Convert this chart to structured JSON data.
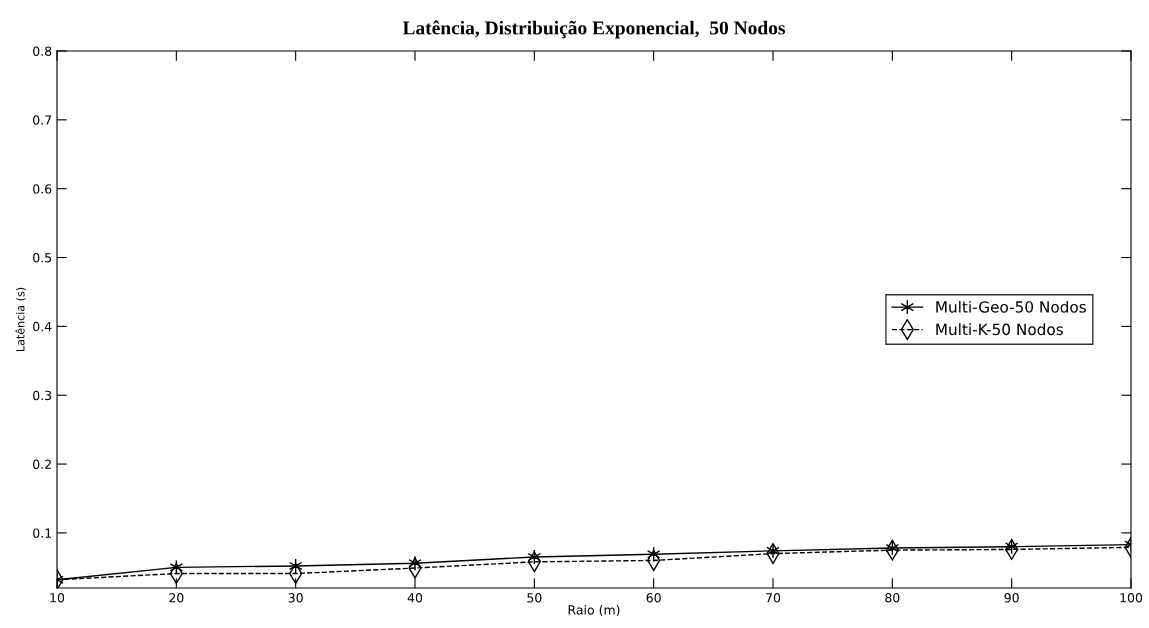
{
  "chart_data": {
    "type": "line",
    "title": "Latência, Distribuição Exponencial,  50 Nodos",
    "xlabel": "Raio (m)",
    "ylabel": "Latência (s)",
    "x": [
      10,
      20,
      30,
      40,
      50,
      60,
      70,
      80,
      90,
      100
    ],
    "series": [
      {
        "name": "Multi-Geo-50 Nodos",
        "color": "#000000",
        "marker": "cross",
        "line_style": "solid",
        "values": [
          0.032,
          0.05,
          0.052,
          0.056,
          0.065,
          0.069,
          0.074,
          0.078,
          0.08,
          0.083
        ]
      },
      {
        "name": "Multi-K-50 Nodos",
        "color": "#000000",
        "marker": "diamond",
        "line_style": "dashed",
        "values": [
          0.032,
          0.041,
          0.041,
          0.049,
          0.058,
          0.06,
          0.07,
          0.075,
          0.076,
          0.079
        ]
      }
    ],
    "xlim": [
      10,
      100
    ],
    "xticks": [
      10,
      20,
      30,
      40,
      50,
      60,
      70,
      80,
      90,
      100
    ],
    "ylim": [
      0.02,
      0.8
    ],
    "yticks": [
      0.1,
      0.2,
      0.3,
      0.4,
      0.5,
      0.6,
      0.7,
      0.8
    ],
    "grid": false,
    "legend": "right"
  }
}
